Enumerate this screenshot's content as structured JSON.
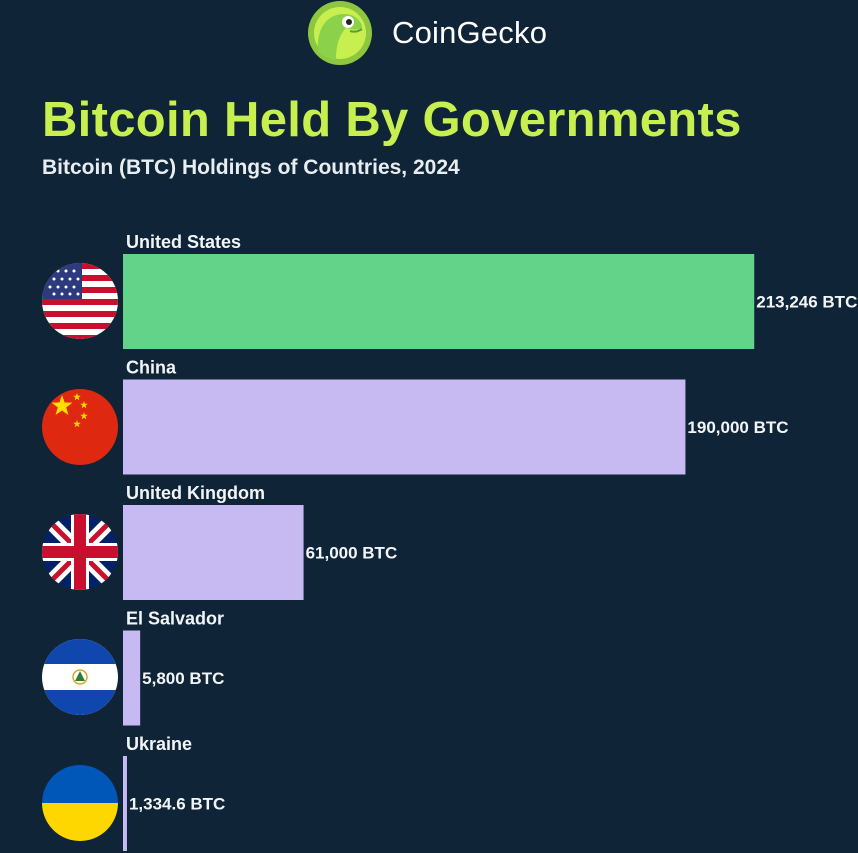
{
  "brand": {
    "name": "CoinGecko",
    "logo_icon": "coingecko-gecko-logo"
  },
  "header": {
    "title": "Bitcoin Held By Governments",
    "subtitle": "Bitcoin (BTC) Holdings of Countries, 2024"
  },
  "colors": {
    "background": "#0f2436",
    "title": "#c6ef4f",
    "highlight_bar": "#64d38a",
    "bar": "#c7baf3"
  },
  "chart_data": {
    "type": "bar",
    "orientation": "horizontal",
    "title": "Bitcoin Held By Governments",
    "subtitle": "Bitcoin (BTC) Holdings of Countries, 2024",
    "unit": "BTC",
    "xlim": [
      0,
      226000
    ],
    "categories": [
      "United States",
      "China",
      "United Kingdom",
      "El Salvador",
      "Ukraine"
    ],
    "values": [
      213246,
      190000,
      61000,
      5800,
      1334.6
    ],
    "value_labels": [
      "213,246 BTC",
      "190,000 BTC",
      "61,000 BTC",
      "5,800 BTC",
      "1,334.6 BTC"
    ],
    "flags": [
      "us-flag-icon",
      "china-flag-icon",
      "uk-flag-icon",
      "el-salvador-flag-icon",
      "ukraine-flag-icon"
    ],
    "highlight_index": 0
  }
}
